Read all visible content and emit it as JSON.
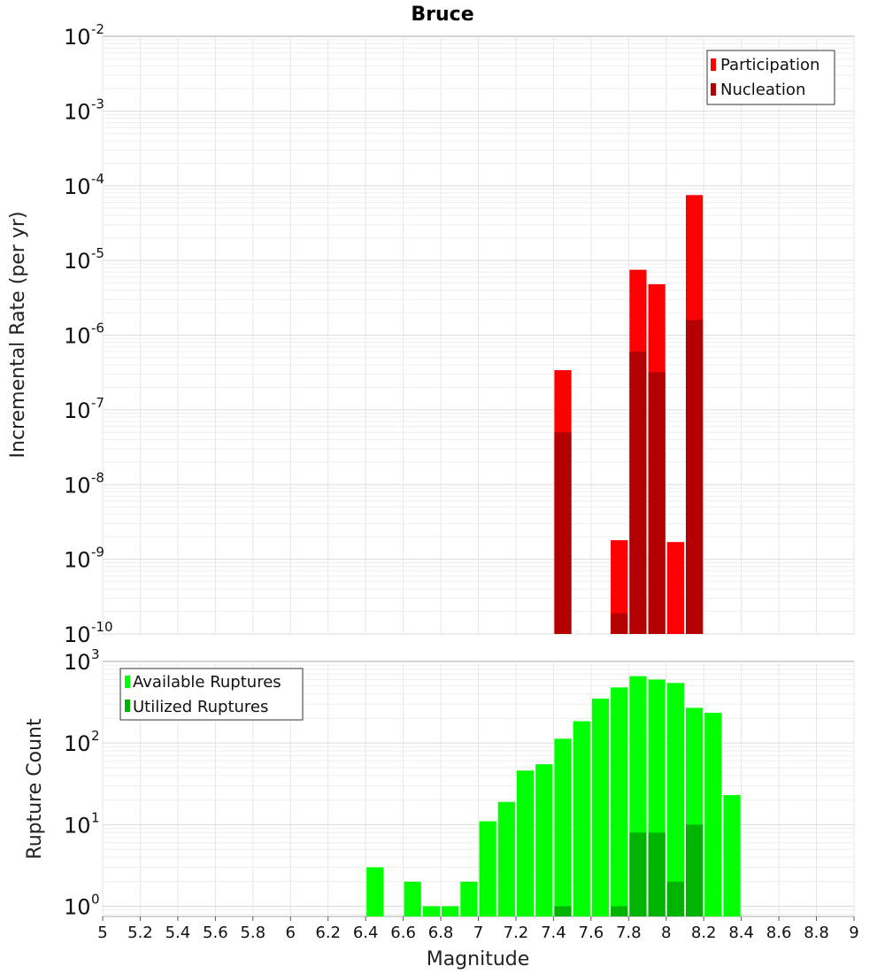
{
  "chart_data": [
    {
      "type": "bar",
      "title": "Bruce",
      "ylabel": "Incremental Rate (per yr)",
      "xlabel": "",
      "xlim": [
        5,
        9
      ],
      "ylim_log10": [
        -10,
        -2
      ],
      "yscale": "log",
      "ytick_exponents": [
        "-2",
        "-3",
        "-4",
        "-5",
        "-6",
        "-7",
        "-8",
        "-9",
        "-10"
      ],
      "bin_width": 0.1,
      "legend": {
        "placement": "top-right",
        "entries": [
          "Participation",
          "Nucleation"
        ]
      },
      "colors": {
        "Participation": "#ff0000",
        "Nucleation": "#b30000"
      },
      "series": [
        {
          "name": "Participation",
          "points": [
            {
              "x": 7.45,
              "y": 3.4e-07
            },
            {
              "x": 7.75,
              "y": 1.8e-09
            },
            {
              "x": 7.85,
              "y": 7.5e-06
            },
            {
              "x": 7.95,
              "y": 4.8e-06
            },
            {
              "x": 8.05,
              "y": 1.7e-09
            },
            {
              "x": 8.15,
              "y": 7.5e-05
            }
          ]
        },
        {
          "name": "Nucleation",
          "points": [
            {
              "x": 7.45,
              "y": 5e-08
            },
            {
              "x": 7.75,
              "y": 1.9e-10
            },
            {
              "x": 7.85,
              "y": 6e-07
            },
            {
              "x": 7.95,
              "y": 3.2e-07
            },
            {
              "x": 8.15,
              "y": 1.6e-06
            }
          ]
        }
      ]
    },
    {
      "type": "bar",
      "title": "",
      "ylabel": "Rupture Count",
      "xlabel": "Magnitude",
      "xlim": [
        5,
        9
      ],
      "ylim": [
        0.75,
        1000
      ],
      "yscale": "log",
      "ytick_exponents": [
        "3",
        "2",
        "1",
        "0"
      ],
      "xticks": [
        "5",
        "5.2",
        "5.4",
        "5.6",
        "5.8",
        "6",
        "6.2",
        "6.4",
        "6.6",
        "6.8",
        "7",
        "7.2",
        "7.4",
        "7.6",
        "7.8",
        "8",
        "8.2",
        "8.4",
        "8.6",
        "8.8",
        "9"
      ],
      "bin_width": 0.1,
      "legend": {
        "placement": "top-left",
        "entries": [
          "Available Ruptures",
          "Utilized Ruptures"
        ]
      },
      "colors": {
        "Available Ruptures": "#00ff00",
        "Utilized Ruptures": "#00b300"
      },
      "series": [
        {
          "name": "Available Ruptures",
          "points": [
            {
              "x": 6.45,
              "y": 3
            },
            {
              "x": 6.65,
              "y": 2
            },
            {
              "x": 6.75,
              "y": 1
            },
            {
              "x": 6.85,
              "y": 1
            },
            {
              "x": 6.95,
              "y": 2
            },
            {
              "x": 7.05,
              "y": 11
            },
            {
              "x": 7.15,
              "y": 19
            },
            {
              "x": 7.25,
              "y": 46
            },
            {
              "x": 7.35,
              "y": 55
            },
            {
              "x": 7.45,
              "y": 113
            },
            {
              "x": 7.55,
              "y": 185
            },
            {
              "x": 7.65,
              "y": 350
            },
            {
              "x": 7.75,
              "y": 480
            },
            {
              "x": 7.85,
              "y": 660
            },
            {
              "x": 7.95,
              "y": 600
            },
            {
              "x": 8.05,
              "y": 545
            },
            {
              "x": 8.15,
              "y": 270
            },
            {
              "x": 8.25,
              "y": 235
            },
            {
              "x": 8.35,
              "y": 23
            }
          ]
        },
        {
          "name": "Utilized Ruptures",
          "points": [
            {
              "x": 7.45,
              "y": 1
            },
            {
              "x": 7.75,
              "y": 1
            },
            {
              "x": 7.85,
              "y": 8
            },
            {
              "x": 7.95,
              "y": 8
            },
            {
              "x": 8.05,
              "y": 2
            },
            {
              "x": 8.15,
              "y": 10
            }
          ]
        }
      ]
    }
  ]
}
